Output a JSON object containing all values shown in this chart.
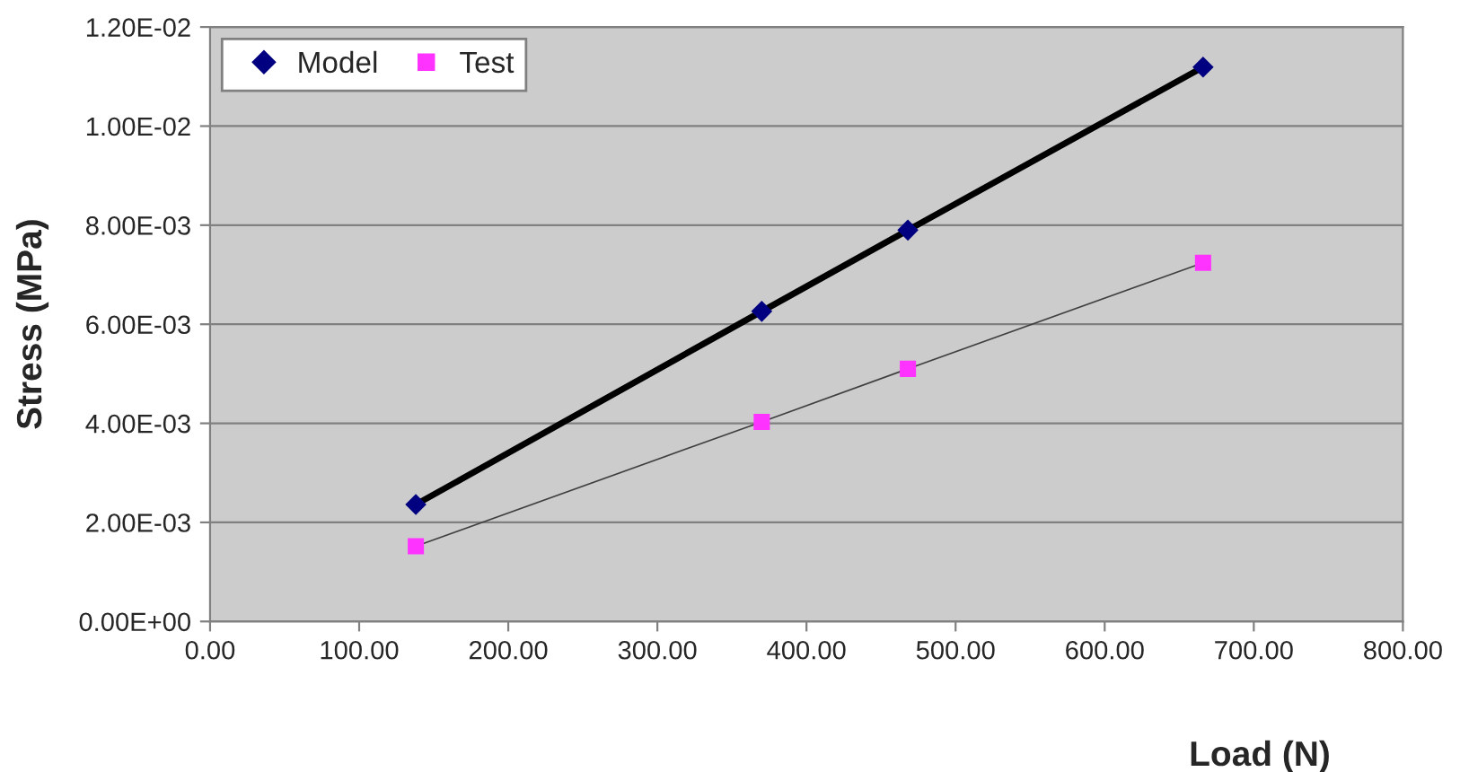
{
  "chart_data": {
    "type": "line",
    "xlabel": "Load (N)",
    "ylabel": "Stress (MPa)",
    "series": [
      {
        "name": "Model",
        "color": "#000080",
        "marker": "diamond",
        "x": [
          138,
          370,
          468,
          666
        ],
        "values": [
          0.00236,
          0.00626,
          0.0079,
          0.01119
        ]
      },
      {
        "name": "Test",
        "color": "#ff33ff",
        "marker": "square",
        "x": [
          138,
          370,
          468,
          666
        ],
        "values": [
          0.00152,
          0.00403,
          0.0051,
          0.00724
        ]
      }
    ],
    "xlim": [
      0,
      800
    ],
    "xticks": [
      {
        "value": 0,
        "label": "0.00"
      },
      {
        "value": 100,
        "label": "100.00"
      },
      {
        "value": 200,
        "label": "200.00"
      },
      {
        "value": 300,
        "label": "300.00"
      },
      {
        "value": 400,
        "label": "400.00"
      },
      {
        "value": 500,
        "label": "500.00"
      },
      {
        "value": 600,
        "label": "600.00"
      },
      {
        "value": 700,
        "label": "700.00"
      },
      {
        "value": 800,
        "label": "800.00"
      }
    ],
    "ylim": [
      0,
      0.012
    ],
    "yticks": [
      {
        "value": 0,
        "label": "0.00E+00"
      },
      {
        "value": 0.002,
        "label": "2.00E-03"
      },
      {
        "value": 0.004,
        "label": "4.00E-03"
      },
      {
        "value": 0.006,
        "label": "6.00E-03"
      },
      {
        "value": 0.008,
        "label": "8.00E-03"
      },
      {
        "value": 0.01,
        "label": "1.00E-02"
      },
      {
        "value": 0.012,
        "label": "1.20E-02"
      }
    ],
    "grid": "y",
    "legend": "top left"
  }
}
